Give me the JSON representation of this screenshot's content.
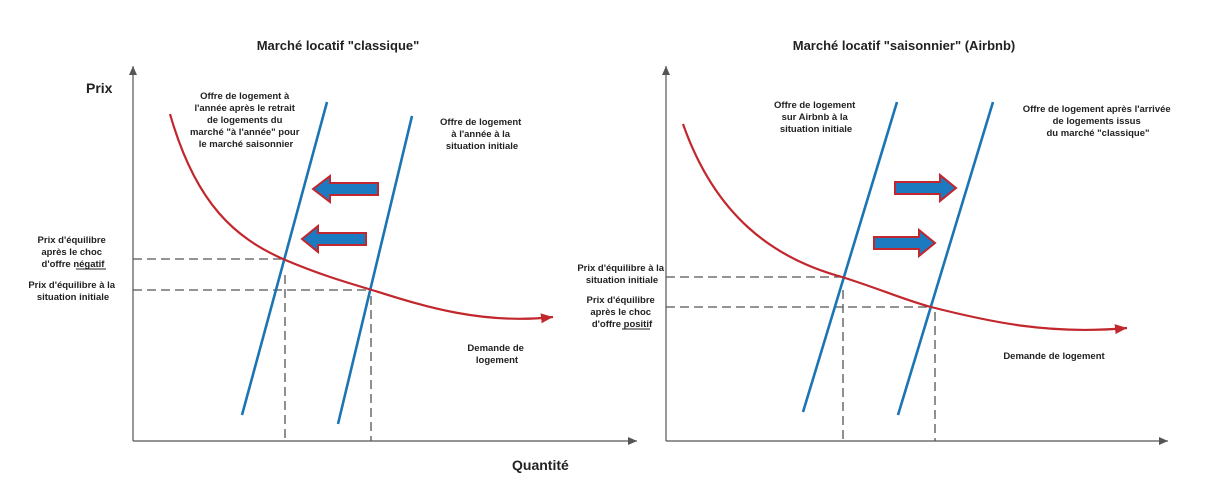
{
  "left_chart": {
    "title": "Marché locatif \"classique\"",
    "y_axis_label": "Prix",
    "x_axis_label": "Quantité",
    "supply_shifted_label": [
      "Offre de logement à",
      "l'année après le retrait",
      "de logements du",
      "marché \"à l'année\" pour",
      "le marché saisonnier"
    ],
    "supply_initial_label": [
      "Offre de logement",
      "à l'année à la",
      "situation initiale"
    ],
    "demand_label": [
      "Demande de",
      "logement"
    ],
    "price_after_label": {
      "line1": "Prix d'équilibre",
      "line2": "après le choc",
      "line3_prefix": "d'offre ",
      "line3_emph": "négatif"
    },
    "price_initial_label": [
      "Prix d'équilibre à la",
      "situation initiale"
    ],
    "shift_direction": "left",
    "colors": {
      "supply": "#1b75b3",
      "demand": "#c1272d",
      "arrow_fill": "#1b7ac0"
    }
  },
  "right_chart": {
    "title": "Marché locatif \"saisonnier\" (Airbnb)",
    "supply_initial_label": [
      "Offre de logement",
      "sur Airbnb à la",
      "situation initiale"
    ],
    "supply_shifted_label": [
      "Offre de logement  après l'arrivée",
      "de logements issus",
      "du marché \"classique\""
    ],
    "demand_label": [
      "Demande de logement"
    ],
    "price_initial_label": [
      "Prix d'équilibre à la",
      "situation initiale"
    ],
    "price_after_label": {
      "line1": "Prix d'équilibre",
      "line2": "après le choc",
      "line3_prefix": "d'offre ",
      "line3_emph": "positif"
    },
    "shift_direction": "right",
    "colors": {
      "supply": "#1b75b3",
      "demand": "#c1272d",
      "arrow_fill": "#1b7ac0"
    }
  }
}
